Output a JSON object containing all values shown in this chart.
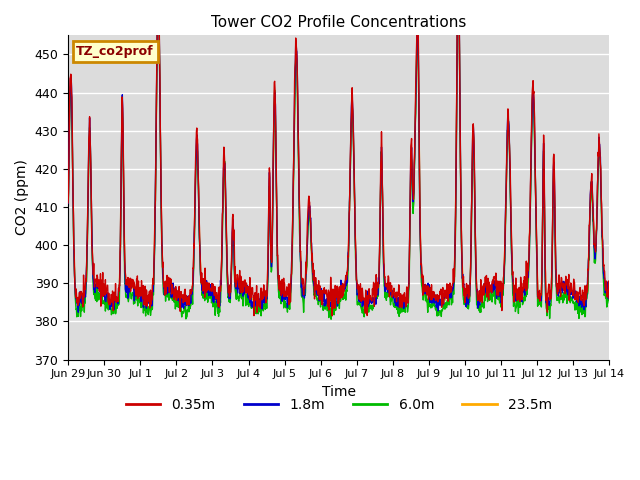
{
  "title": "Tower CO2 Profile Concentrations",
  "xlabel": "Time",
  "ylabel": "CO2 (ppm)",
  "ylim": [
    370,
    455
  ],
  "yticks": [
    370,
    380,
    390,
    400,
    410,
    420,
    430,
    440,
    450
  ],
  "bg_color": "#dcdcdc",
  "legend_label": "TZ_co2prof",
  "legend_bg": "#ffffcc",
  "legend_border": "#cc8800",
  "series_colors": [
    "#cc0000",
    "#0000cc",
    "#00bb00",
    "#ffaa00"
  ],
  "series_labels": [
    "0.35m",
    "1.8m",
    "6.0m",
    "23.5m"
  ],
  "x_tick_labels": [
    "Jun 29",
    "Jun 30",
    "Jul 1",
    "Jul 2",
    "Jul 3",
    "Jul 4",
    "Jul 5",
    "Jul 6",
    "Jul 7",
    "Jul 8",
    "Jul 9",
    "Jul 10",
    "Jul 11",
    "Jul 12",
    "Jul 13",
    "Jul 14"
  ],
  "n_days": 15,
  "seed": 7
}
